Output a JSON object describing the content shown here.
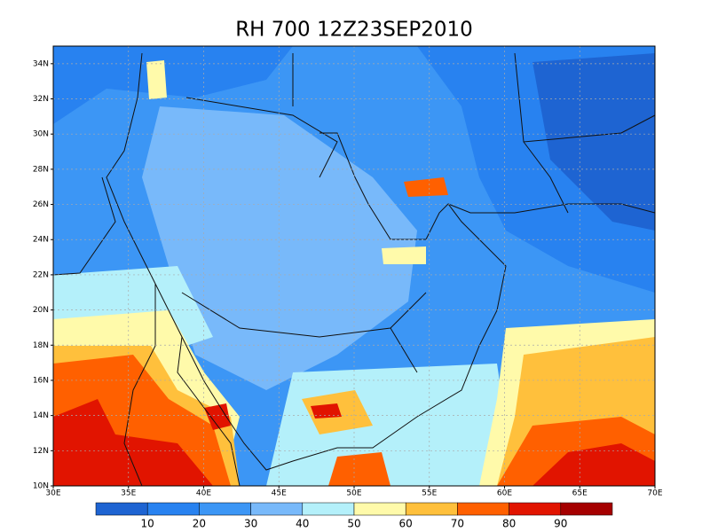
{
  "title": "RH 700 12Z23SEP2010",
  "map": {
    "lon_range": [
      30,
      70
    ],
    "lat_range": [
      10,
      35
    ],
    "grid": true,
    "lat_ticks": [
      {
        "value": 10,
        "label": "10N"
      },
      {
        "value": 12,
        "label": "12N"
      },
      {
        "value": 14,
        "label": "14N"
      },
      {
        "value": 16,
        "label": "16N"
      },
      {
        "value": 18,
        "label": "18N"
      },
      {
        "value": 20,
        "label": "20N"
      },
      {
        "value": 22,
        "label": "22N"
      },
      {
        "value": 24,
        "label": "24N"
      },
      {
        "value": 26,
        "label": "26N"
      },
      {
        "value": 28,
        "label": "28N"
      },
      {
        "value": 30,
        "label": "30N"
      },
      {
        "value": 32,
        "label": "32N"
      },
      {
        "value": 34,
        "label": "34N"
      }
    ],
    "lon_ticks": [
      {
        "value": 30,
        "label": "30E"
      },
      {
        "value": 35,
        "label": "35E"
      },
      {
        "value": 40,
        "label": "40E"
      },
      {
        "value": 45,
        "label": "45E"
      },
      {
        "value": 50,
        "label": "50E"
      },
      {
        "value": 55,
        "label": "55E"
      },
      {
        "value": 60,
        "label": "60E"
      },
      {
        "value": 65,
        "label": "65E"
      },
      {
        "value": 70,
        "label": "70E"
      }
    ]
  },
  "colorbar": {
    "levels": [
      10,
      20,
      30,
      40,
      50,
      60,
      70,
      80,
      90
    ],
    "colors": [
      "#1e64d2",
      "#2882f0",
      "#3c96f5",
      "#78b9fa",
      "#b4f0fa",
      "#fffaaa",
      "#ffc03c",
      "#ff6000",
      "#e11400",
      "#a50000"
    ]
  }
}
